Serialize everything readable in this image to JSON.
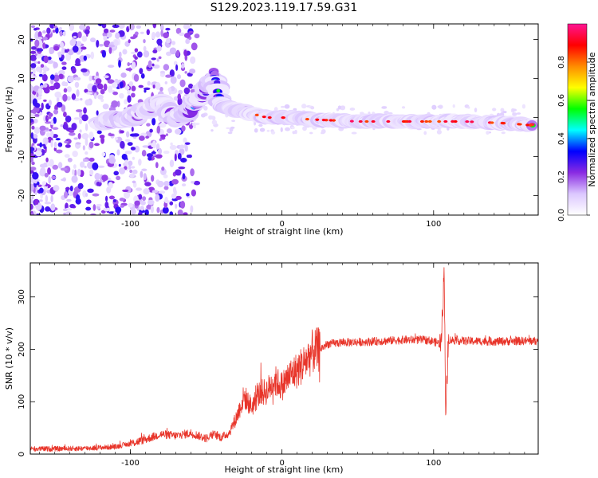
{
  "title": "S129.2023.119.17.59.G31",
  "chart_data": [
    {
      "type": "heatmap",
      "xlabel": "Height of straight line (km)",
      "ylabel": "Frequency (Hz)",
      "xlim": [
        -166,
        169
      ],
      "ylim": [
        -25,
        24
      ],
      "x_ticks": [
        -100,
        0,
        100
      ],
      "y_ticks": [
        -20,
        -10,
        0,
        10,
        20
      ],
      "colorbar": {
        "label": "Normalized spectral amplitude",
        "range": [
          0,
          1
        ],
        "ticks": [
          "0.0",
          "0.2",
          "0.4",
          "0.6",
          "0.8"
        ],
        "colors": [
          "#ffffff",
          "#dcc8ff",
          "#8a2be2",
          "#0000ff",
          "#00ffff",
          "#00ff00",
          "#ffff00",
          "#ff8c00",
          "#ff0000",
          "#ff1493"
        ]
      },
      "ridge": {
        "x": [
          -120,
          -110,
          -100,
          -90,
          -80,
          -70,
          -60,
          -50,
          -45,
          -40,
          -30,
          -20,
          -10,
          0,
          20,
          50,
          80,
          100,
          120,
          150,
          165
        ],
        "y": [
          -1.5,
          -0.5,
          0,
          2,
          4,
          0,
          2,
          7,
          11,
          3,
          2,
          1,
          0,
          0,
          -0.5,
          -1,
          -1,
          -1,
          -1,
          -1.5,
          -2
        ],
        "amplitude": [
          0.25,
          0.3,
          0.35,
          0.35,
          0.35,
          0.3,
          0.4,
          0.45,
          0.5,
          0.55,
          0.6,
          0.7,
          0.8,
          0.85,
          0.7,
          0.75,
          0.75,
          0.78,
          0.75,
          0.8,
          0.95
        ]
      }
    },
    {
      "type": "line",
      "xlabel": "Height of straight line (km)",
      "ylabel": "SNR (10 * v/v)",
      "xlim": [
        -166,
        169
      ],
      "ylim": [
        0,
        365
      ],
      "x_ticks": [
        -100,
        0,
        100
      ],
      "y_ticks": [
        0,
        100,
        200,
        300
      ],
      "series": [
        {
          "color": "#e8352a",
          "x": [
            -166,
            -150,
            -130,
            -110,
            -100,
            -90,
            -80,
            -70,
            -60,
            -50,
            -45,
            -40,
            -35,
            -30,
            -25,
            -20,
            -15,
            -10,
            -5,
            0,
            5,
            10,
            15,
            20,
            25,
            30,
            40,
            60,
            80,
            95,
            100,
            105,
            107,
            108,
            110,
            120,
            140,
            160,
            169
          ],
          "y": [
            10,
            10,
            11,
            14,
            20,
            28,
            38,
            35,
            40,
            30,
            38,
            32,
            40,
            70,
            110,
            90,
            115,
            120,
            140,
            130,
            150,
            160,
            175,
            195,
            200,
            210,
            213,
            215,
            218,
            218,
            215,
            210,
            350,
            80,
            218,
            216,
            215,
            216,
            216
          ]
        }
      ]
    }
  ]
}
